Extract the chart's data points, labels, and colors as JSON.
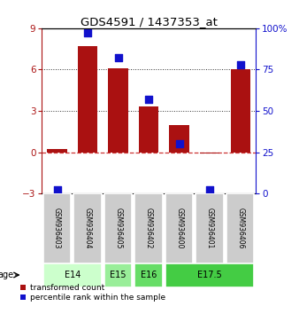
{
  "title": "GDS4591 / 1437353_at",
  "samples": [
    "GSM936403",
    "GSM936404",
    "GSM936405",
    "GSM936402",
    "GSM936400",
    "GSM936401",
    "GSM936406"
  ],
  "transformed_count": [
    0.2,
    7.7,
    6.1,
    3.3,
    2.0,
    -0.1,
    6.05
  ],
  "percentile_rank": [
    2,
    97,
    82,
    57,
    30,
    2,
    78
  ],
  "age_groups": [
    {
      "label": "E14",
      "start": 0,
      "end": 2,
      "color": "#ccffcc"
    },
    {
      "label": "E15",
      "start": 2,
      "end": 3,
      "color": "#99ee99"
    },
    {
      "label": "E16",
      "start": 3,
      "end": 4,
      "color": "#66dd66"
    },
    {
      "label": "E17.5",
      "start": 4,
      "end": 7,
      "color": "#44cc44"
    }
  ],
  "ylim_left": [
    -3,
    9
  ],
  "ylim_right": [
    0,
    100
  ],
  "bar_color": "#aa1111",
  "dot_color": "#1111cc",
  "zero_line_color": "#cc3333",
  "grid_color": "#333333",
  "yticks_left": [
    -3,
    0,
    3,
    6,
    9
  ],
  "yticks_right": [
    0,
    25,
    50,
    75,
    100
  ],
  "ytick_labels_right": [
    "0",
    "25",
    "50",
    "75",
    "100%"
  ],
  "background_color": "#ffffff",
  "sample_box_color": "#cccccc",
  "age_label": "age"
}
